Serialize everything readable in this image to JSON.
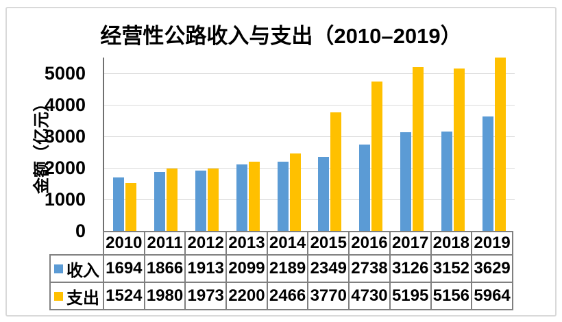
{
  "chart_data": {
    "type": "bar",
    "title": "经营性公路收入与支出（2010–2019）",
    "ylabel": "金额（亿元）",
    "xlabel": "",
    "categories": [
      "2010",
      "2011",
      "2012",
      "2013",
      "2014",
      "2015",
      "2016",
      "2017",
      "2018",
      "2019"
    ],
    "series": [
      {
        "name": "收入",
        "color": "#5B9BD5",
        "values": [
          1694,
          1866,
          1913,
          2099,
          2189,
          2349,
          2738,
          3126,
          3152,
          3629
        ]
      },
      {
        "name": "支出",
        "color": "#FFC000",
        "values": [
          1524,
          1980,
          1973,
          2200,
          2466,
          3770,
          4730,
          5195,
          5156,
          5964
        ]
      }
    ],
    "ylim": [
      0,
      5500
    ],
    "yticks": [
      0,
      1000,
      2000,
      3000,
      4000,
      5000
    ],
    "grid": true,
    "gridline_color": "#D9D9D9",
    "axis_line_color": "#707070",
    "table_border_color": "#808080",
    "legend_position": "table-left"
  }
}
